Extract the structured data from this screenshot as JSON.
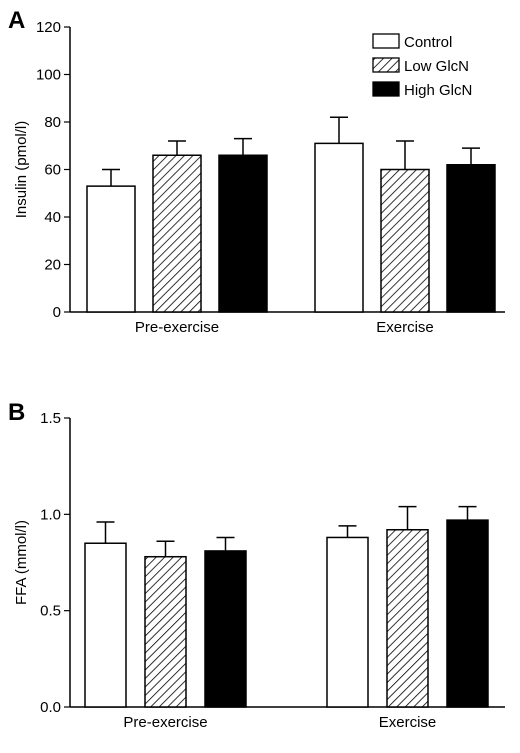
{
  "chart_data": [
    {
      "panel_label": "A",
      "type": "bar",
      "categories": [
        "Pre-exercise",
        "Exercise"
      ],
      "series": [
        {
          "name": "Control",
          "values": [
            53,
            71
          ],
          "errors": [
            7,
            11
          ],
          "fill": "white"
        },
        {
          "name": "Low GlcN",
          "values": [
            66,
            60
          ],
          "errors": [
            6,
            12
          ],
          "fill": "hatched"
        },
        {
          "name": "High GlcN",
          "values": [
            66,
            62
          ],
          "errors": [
            7,
            7
          ],
          "fill": "black"
        }
      ],
      "ylabel": "Insulin (pmol/l)",
      "ylim": [
        0,
        120
      ],
      "yticks": [
        0,
        20,
        40,
        60,
        80,
        100,
        120
      ],
      "ytick_labels": [
        "0",
        "20",
        "40",
        "60",
        "80",
        "100",
        "120"
      ],
      "legend": {
        "position": "top-right",
        "entries": [
          "Control",
          "Low GlcN",
          "High GlcN"
        ]
      },
      "grid": false
    },
    {
      "panel_label": "B",
      "type": "bar",
      "categories": [
        "Pre-exercise",
        "Exercise"
      ],
      "series": [
        {
          "name": "Control",
          "values": [
            0.85,
            0.88
          ],
          "errors": [
            0.11,
            0.06
          ],
          "fill": "white"
        },
        {
          "name": "Low GlcN",
          "values": [
            0.78,
            0.92
          ],
          "errors": [
            0.08,
            0.12
          ],
          "fill": "hatched"
        },
        {
          "name": "High GlcN",
          "values": [
            0.81,
            0.97
          ],
          "errors": [
            0.07,
            0.07
          ],
          "fill": "black"
        }
      ],
      "ylabel": "FFA (mmol/l)",
      "ylim": [
        0,
        1.5
      ],
      "yticks": [
        0,
        0.5,
        1,
        1.5
      ],
      "ytick_labels": [
        "0.0",
        "0.5",
        "1.0",
        "1.5"
      ],
      "legend": null,
      "grid": false
    }
  ],
  "colors": {
    "axis": "#000000",
    "bar_white": "#ffffff",
    "bar_black": "#000000",
    "hatch": "#000000"
  }
}
